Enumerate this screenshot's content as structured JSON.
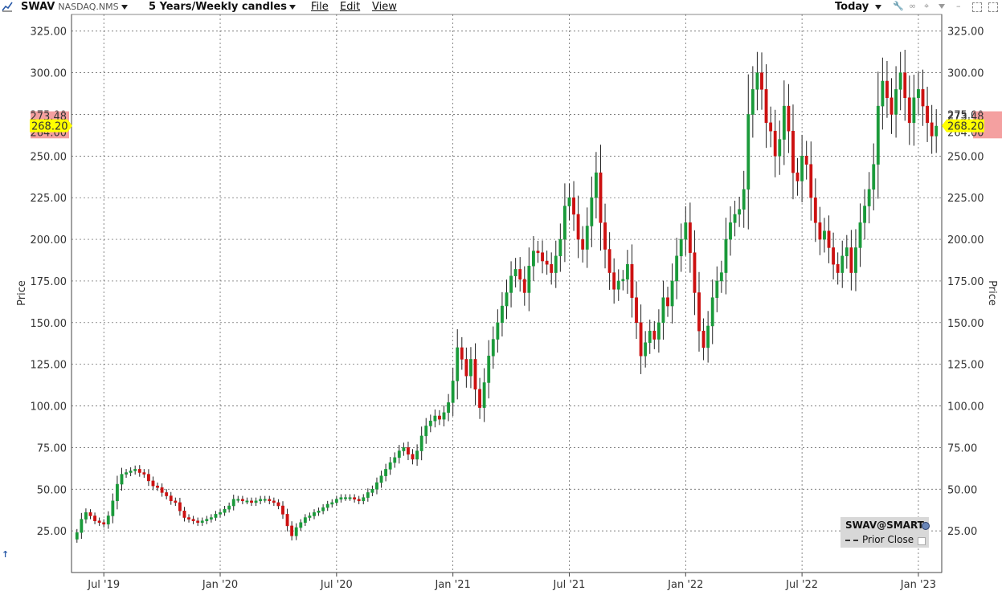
{
  "toolbar": {
    "symbol": "SWAV",
    "exchange": "NASDAQ.NMS",
    "period": "5 Years/Weekly candles",
    "menus": [
      "File",
      "Edit",
      "View"
    ],
    "range": "Today"
  },
  "legend": {
    "title": "SWAV@SMART",
    "prior_close": "Prior Close"
  },
  "colors": {
    "up": "#1a9a3a",
    "down": "#cc1111",
    "grid": "#555555",
    "price_tag": "#ffff00",
    "hl_band": "#f4a0a0"
  },
  "chart_data": {
    "type": "candlestick",
    "interval": "weekly",
    "ylabel": "Price",
    "ylim": [
      0,
      335
    ],
    "y_ticks": [
      "25.00",
      "50.00",
      "75.00",
      "100.00",
      "125.00",
      "150.00",
      "175.00",
      "200.00",
      "225.00",
      "250.00",
      "275.00",
      "300.00",
      "325.00"
    ],
    "x_labels": [
      "Jul '19",
      "Jan '20",
      "Jul '20",
      "Jan '21",
      "Jul '21",
      "Jan '22",
      "Jul '22",
      "Jan '23"
    ],
    "last_price": "268.20",
    "band_high": "273.48",
    "band_low": "264.00",
    "close_series": [
      24,
      32,
      36,
      34,
      31,
      30,
      29,
      34,
      43,
      53,
      59,
      60,
      61,
      62,
      60,
      59,
      55,
      52,
      51,
      48,
      46,
      43,
      42,
      37,
      33,
      32,
      31,
      30,
      31,
      32,
      33,
      35,
      36,
      38,
      40,
      44,
      44,
      43,
      43,
      42,
      43,
      44,
      44,
      43,
      42,
      40,
      35,
      28,
      22,
      27,
      30,
      33,
      34,
      36,
      37,
      39,
      41,
      42,
      44,
      45,
      45,
      45,
      44,
      43,
      45,
      48,
      50,
      54,
      58,
      62,
      66,
      69,
      73,
      75,
      71,
      68,
      73,
      82,
      88,
      91,
      94,
      92,
      96,
      102,
      115,
      135,
      128,
      118,
      128,
      110,
      99,
      114,
      130,
      140,
      150,
      160,
      168,
      178,
      182,
      176,
      168,
      184,
      193,
      192,
      187,
      185,
      180,
      190,
      200,
      220,
      225,
      215,
      200,
      194,
      208,
      225,
      240,
      210,
      194,
      180,
      170,
      175,
      176,
      185,
      165,
      150,
      130,
      138,
      145,
      140,
      150,
      165,
      160,
      175,
      190,
      200,
      210,
      192,
      168,
      145,
      135,
      148,
      165,
      175,
      180,
      200,
      210,
      215,
      218,
      230,
      275,
      290,
      300,
      290,
      270,
      265,
      250,
      260,
      280,
      265,
      240,
      235,
      250,
      245,
      225,
      210,
      200,
      205,
      195,
      185,
      180,
      190,
      195,
      180,
      195,
      210,
      220,
      230,
      245,
      280,
      295,
      285,
      275,
      290,
      300,
      285,
      270,
      285,
      290,
      280,
      270,
      262,
      268
    ]
  }
}
